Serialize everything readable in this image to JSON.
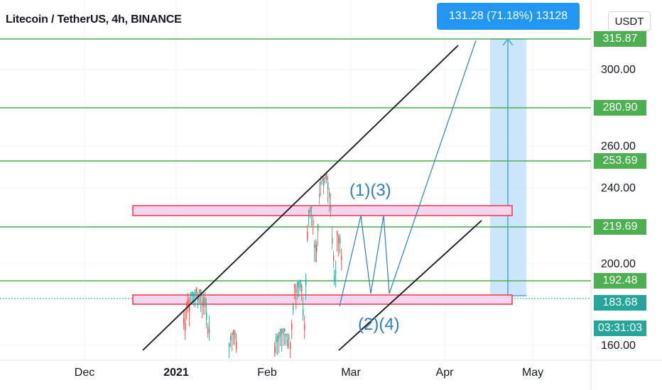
{
  "header": {
    "title": "Litecoin / TetherUS, 4h, BINANCE"
  },
  "toolbar": {
    "currency_label": "USDT"
  },
  "measure": {
    "label": "131.28 (71.18%) 13128"
  },
  "colors": {
    "green_line": "#4caf50",
    "green_tag": "#4caf50",
    "teal_tag": "#26a69a",
    "red_box": "#f23645",
    "box_fill": "#f3d5ef",
    "blue": "#2f7fc1",
    "measure_fill": "#bbdefb",
    "up_candle": "#26a69a",
    "down_candle": "#ef5350"
  },
  "price_axis": {
    "ticks": [
      "300.00",
      "260.00",
      "240.00",
      "200.00",
      "160.00"
    ],
    "levels": [
      "315.87",
      "280.90",
      "253.69",
      "219.69",
      "192.48",
      "183.68"
    ],
    "countdown": "03:31:03"
  },
  "time_axis": {
    "ticks": [
      {
        "label": "Dec",
        "bold": false
      },
      {
        "label": "2021",
        "bold": true
      },
      {
        "label": "Feb",
        "bold": false
      },
      {
        "label": "Mar",
        "bold": false
      },
      {
        "label": "Apr",
        "bold": false
      },
      {
        "label": "May",
        "bold": false
      }
    ]
  },
  "annotations": {
    "wave_13": "(1)(3)",
    "wave_24": "(2)(4)"
  }
}
